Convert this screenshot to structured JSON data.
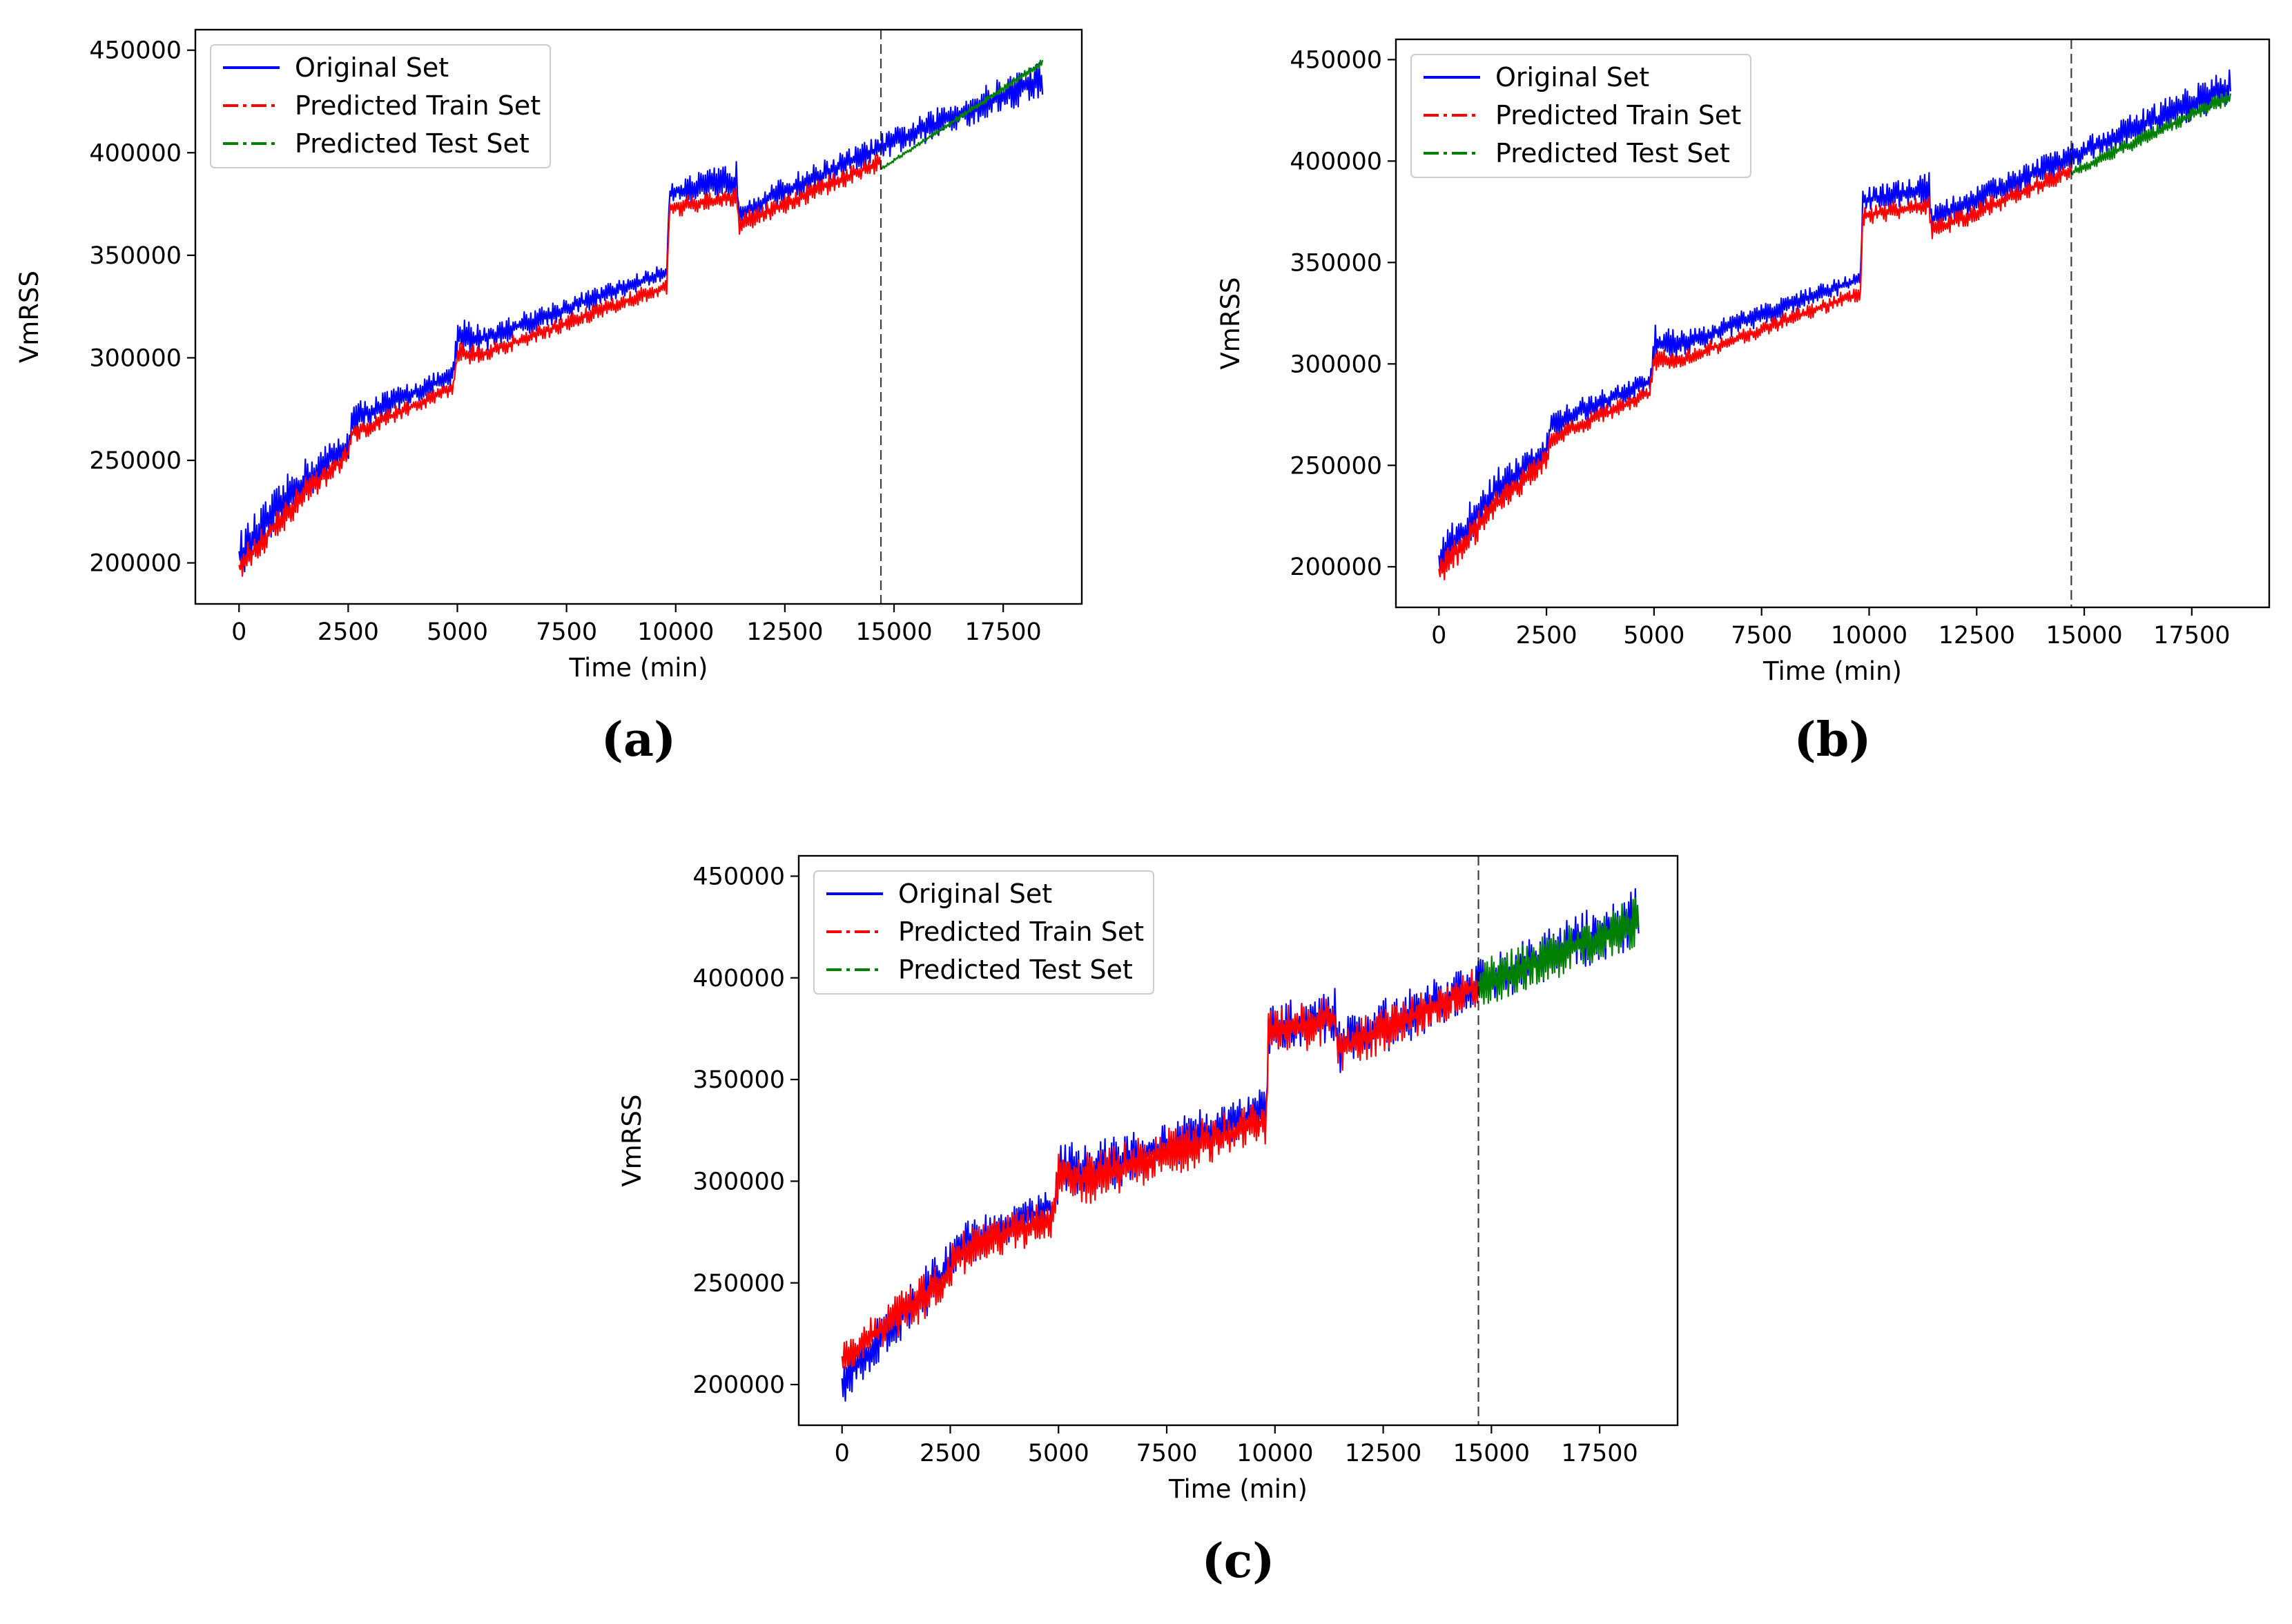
{
  "chart_data": [
    {
      "type": "line",
      "panel_label": "(a)",
      "xlabel": "Time (min)",
      "ylabel": "VmRSS",
      "xlim": [
        -1000,
        19300
      ],
      "ylim": [
        180000,
        460000
      ],
      "xticks": [
        0,
        2500,
        5000,
        7500,
        10000,
        12500,
        15000,
        17500
      ],
      "xtick_labels": [
        "0",
        "2500",
        "5000",
        "7500",
        "10000",
        "12500",
        "15000",
        "17500"
      ],
      "yticks": [
        200000,
        250000,
        300000,
        350000,
        400000,
        450000
      ],
      "ytick_labels": [
        "200000",
        "250000",
        "300000",
        "350000",
        "400000",
        "450000"
      ],
      "split_x": 14700,
      "legend": [
        "Original Set",
        "Predicted Train Set",
        "Predicted Test Set"
      ],
      "legend_position": "upper-left",
      "colors": {
        "original": "#0000ff",
        "train": "#ff0000",
        "test": "#008000"
      },
      "series": [
        {
          "name": "Original Set",
          "x": [
            0,
            1300,
            2500,
            2600,
            4900,
            5000,
            5600,
            9800,
            9850,
            11400,
            11450,
            14700,
            18400
          ],
          "lower": [
            192000,
            225000,
            250000,
            262000,
            287000,
            300000,
            303000,
            338000,
            375000,
            378000,
            364000,
            396000,
            427000
          ],
          "upper": [
            215000,
            248000,
            265000,
            278000,
            296000,
            320000,
            316000,
            346000,
            386000,
            396000,
            378000,
            409000,
            446000
          ]
        },
        {
          "name": "Predicted Train Set",
          "x": [
            0,
            1300,
            2500,
            2600,
            4900,
            5000,
            5600,
            9800,
            9850,
            11400,
            11450,
            14700
          ],
          "lower": [
            190000,
            222000,
            248000,
            258000,
            282000,
            296000,
            298000,
            331000,
            368000,
            374000,
            360000,
            391000
          ],
          "upper": [
            205000,
            238000,
            258000,
            268000,
            289000,
            308000,
            306000,
            339000,
            378000,
            383000,
            370000,
            400000
          ]
        },
        {
          "name": "Predicted Test Set",
          "x": [
            14700,
            18400
          ],
          "lower": [
            391000,
            442000
          ],
          "upper": [
            393000,
            446000
          ]
        }
      ]
    },
    {
      "type": "line",
      "panel_label": "(b)",
      "xlabel": "Time (min)",
      "ylabel": "VmRSS",
      "xlim": [
        -1000,
        19300
      ],
      "ylim": [
        180000,
        460000
      ],
      "xticks": [
        0,
        2500,
        5000,
        7500,
        10000,
        12500,
        15000,
        17500
      ],
      "xtick_labels": [
        "0",
        "2500",
        "5000",
        "7500",
        "10000",
        "12500",
        "15000",
        "17500"
      ],
      "yticks": [
        200000,
        250000,
        300000,
        350000,
        400000,
        450000
      ],
      "ytick_labels": [
        "200000",
        "250000",
        "300000",
        "350000",
        "400000",
        "450000"
      ],
      "split_x": 14700,
      "legend": [
        "Original Set",
        "Predicted Train Set",
        "Predicted Test Set"
      ],
      "legend_position": "upper-left",
      "colors": {
        "original": "#0000ff",
        "train": "#ff0000",
        "test": "#008000"
      },
      "series": [
        {
          "name": "Original Set",
          "x": [
            0,
            1300,
            2500,
            2600,
            4900,
            5000,
            5600,
            9800,
            9850,
            11400,
            11450,
            14700,
            18400
          ],
          "lower": [
            192000,
            225000,
            250000,
            262000,
            287000,
            300000,
            303000,
            338000,
            375000,
            378000,
            364000,
            396000,
            427000
          ],
          "upper": [
            215000,
            248000,
            265000,
            278000,
            296000,
            320000,
            316000,
            346000,
            386000,
            396000,
            378000,
            409000,
            446000
          ]
        },
        {
          "name": "Predicted Train Set",
          "x": [
            0,
            1300,
            2500,
            2600,
            4900,
            5000,
            5600,
            9800,
            9850,
            11400,
            11450,
            14700
          ],
          "lower": [
            190000,
            222000,
            248000,
            258000,
            282000,
            296000,
            298000,
            331000,
            368000,
            374000,
            360000,
            391000
          ],
          "upper": [
            205000,
            238000,
            258000,
            268000,
            289000,
            308000,
            306000,
            339000,
            378000,
            383000,
            370000,
            400000
          ]
        },
        {
          "name": "Predicted Test Set",
          "x": [
            14700,
            18400
          ],
          "lower": [
            391000,
            428000
          ],
          "upper": [
            397000,
            436000
          ]
        }
      ]
    },
    {
      "type": "line",
      "panel_label": "(c)",
      "xlabel": "Time (min)",
      "ylabel": "VmRSS",
      "xlim": [
        -1000,
        19300
      ],
      "ylim": [
        180000,
        460000
      ],
      "xticks": [
        0,
        2500,
        5000,
        7500,
        10000,
        12500,
        15000,
        17500
      ],
      "xtick_labels": [
        "0",
        "2500",
        "5000",
        "7500",
        "10000",
        "12500",
        "15000",
        "17500"
      ],
      "yticks": [
        200000,
        250000,
        300000,
        350000,
        400000,
        450000
      ],
      "ytick_labels": [
        "200000",
        "250000",
        "300000",
        "350000",
        "400000",
        "450000"
      ],
      "split_x": 14700,
      "legend": [
        "Original Set",
        "Predicted Train Set",
        "Predicted Test Set"
      ],
      "legend_position": "upper-left",
      "colors": {
        "original": "#0000ff",
        "train": "#ff0000",
        "test": "#008000"
      },
      "series": [
        {
          "name": "Original Set",
          "x": [
            0,
            1300,
            2500,
            2600,
            4900,
            5000,
            5600,
            9800,
            9850,
            11400,
            11450,
            14700,
            18400
          ],
          "lower": [
            190000,
            220000,
            245000,
            255000,
            280000,
            290000,
            290000,
            325000,
            362000,
            368000,
            352000,
            385000,
            415000
          ],
          "upper": [
            212000,
            246000,
            270000,
            278000,
            296000,
            321000,
            318000,
            346000,
            386000,
            396000,
            380000,
            409000,
            446000
          ]
        },
        {
          "name": "Predicted Train Set",
          "x": [
            0,
            1300,
            2500,
            2600,
            4900,
            5000,
            5600,
            9800,
            9850,
            11400,
            11450,
            14700
          ],
          "lower": [
            205000,
            223000,
            240000,
            252000,
            273000,
            290000,
            288000,
            318000,
            362000,
            366000,
            352000,
            386000
          ],
          "upper": [
            220000,
            245000,
            265000,
            275000,
            292000,
            317000,
            314000,
            340000,
            384000,
            393000,
            376000,
            406000
          ]
        },
        {
          "name": "Predicted Test Set",
          "x": [
            14700,
            18400
          ],
          "lower": [
            385000,
            415000
          ],
          "upper": [
            408000,
            440000
          ]
        }
      ]
    }
  ]
}
